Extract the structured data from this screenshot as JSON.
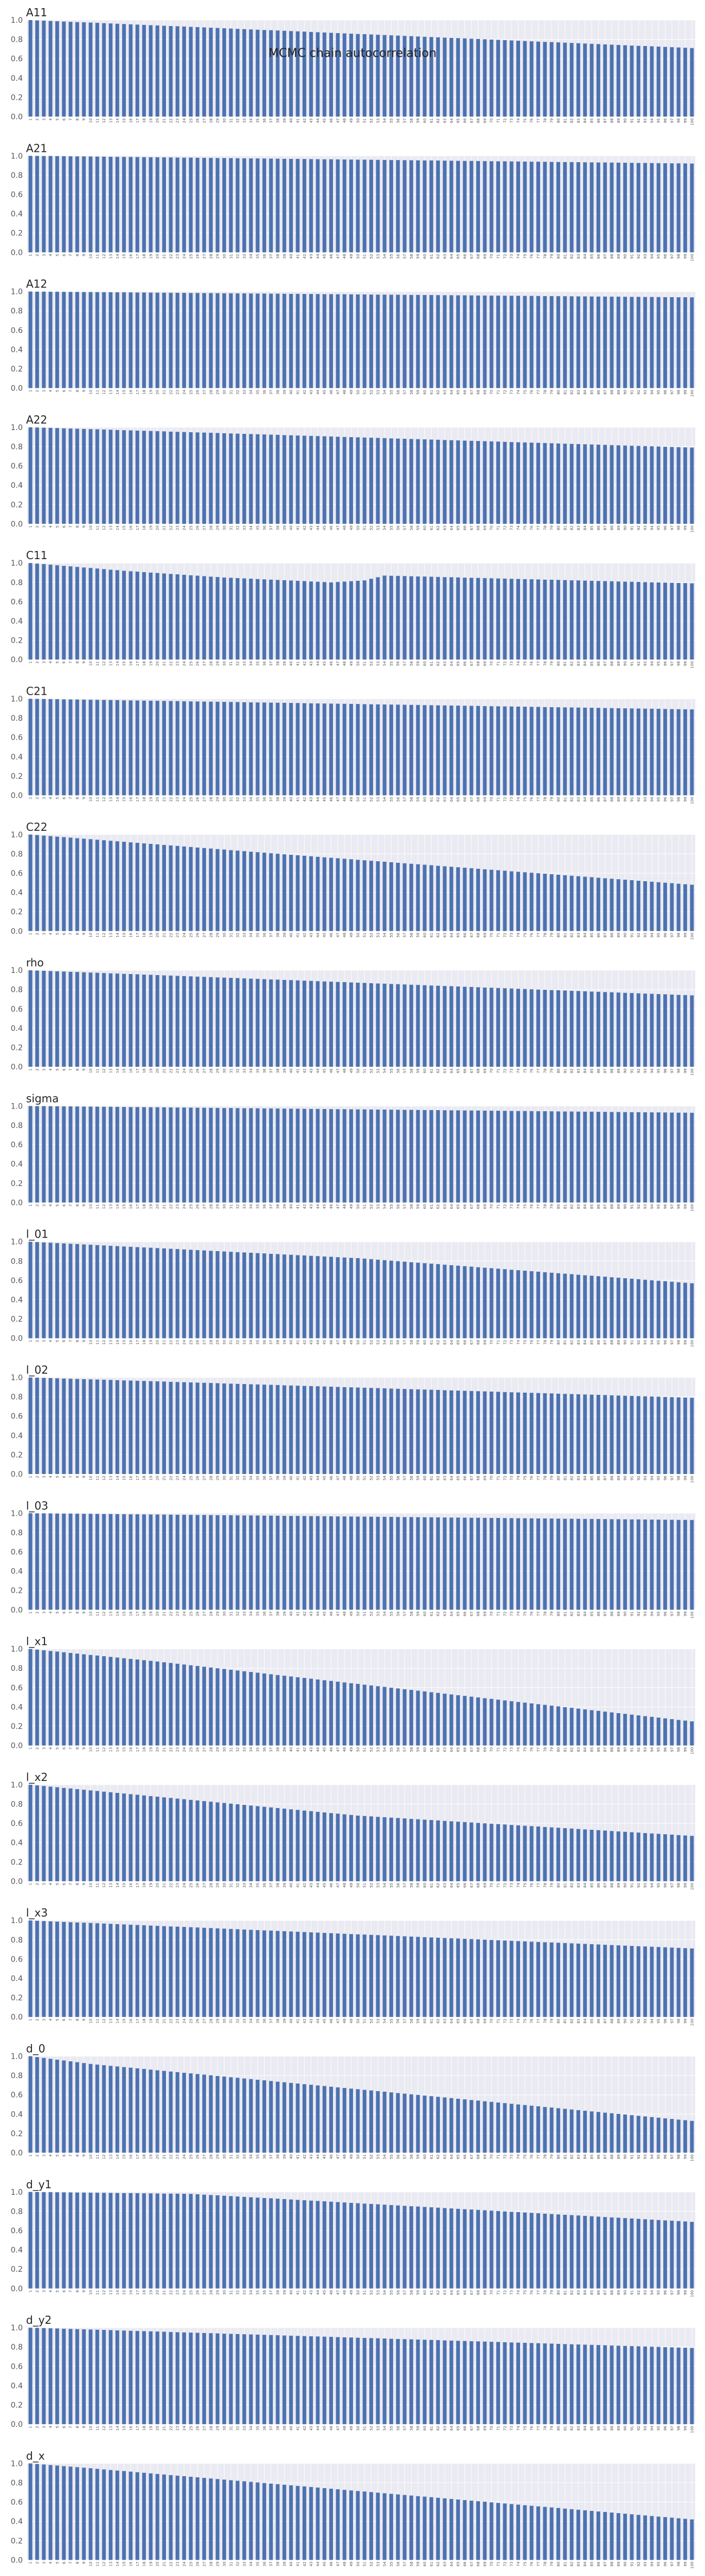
{
  "figure": {
    "suptitle": "MCMC chain autocorrelation",
    "colors": {
      "bar": "#4c72b0",
      "axes_bg": "#eaeaf2",
      "grid": "#ffffff",
      "text": "#262626"
    }
  },
  "chart_data": [
    {
      "type": "bar",
      "title": "A11",
      "x_range": [
        1,
        100
      ],
      "ylim": [
        0,
        1.0
      ],
      "yticks": [
        0.0,
        0.2,
        0.4,
        0.6,
        0.8,
        1.0
      ],
      "grid": true,
      "trend": {
        "kind": "linear",
        "at": [
          1,
          100
        ],
        "values": [
          1.0,
          0.71
        ]
      }
    },
    {
      "type": "bar",
      "title": "A21",
      "x_range": [
        1,
        100
      ],
      "ylim": [
        0,
        1.0
      ],
      "yticks": [
        0.0,
        0.2,
        0.4,
        0.6,
        0.8,
        1.0
      ],
      "grid": true,
      "trend": {
        "kind": "linear",
        "at": [
          1,
          100
        ],
        "values": [
          1.0,
          0.92
        ]
      }
    },
    {
      "type": "bar",
      "title": "A12",
      "x_range": [
        1,
        100
      ],
      "ylim": [
        0,
        1.0
      ],
      "yticks": [
        0.0,
        0.2,
        0.4,
        0.6,
        0.8,
        1.0
      ],
      "grid": true,
      "trend": {
        "kind": "linear",
        "at": [
          1,
          100
        ],
        "values": [
          1.0,
          0.94
        ]
      }
    },
    {
      "type": "bar",
      "title": "A22",
      "x_range": [
        1,
        100
      ],
      "ylim": [
        0,
        1.0
      ],
      "yticks": [
        0.0,
        0.2,
        0.4,
        0.6,
        0.8,
        1.0
      ],
      "grid": true,
      "trend": {
        "kind": "linear",
        "at": [
          1,
          100
        ],
        "values": [
          1.0,
          0.79
        ]
      }
    },
    {
      "type": "bar",
      "title": "C11",
      "x_range": [
        1,
        100
      ],
      "ylim": [
        0,
        1.0
      ],
      "yticks": [
        0.0,
        0.2,
        0.4,
        0.6,
        0.8,
        1.0
      ],
      "grid": true,
      "trend": {
        "kind": "piecewise",
        "at": [
          1,
          15,
          30,
          46,
          51,
          54,
          100
        ],
        "values": [
          1.0,
          0.92,
          0.85,
          0.8,
          0.82,
          0.87,
          0.79
        ]
      }
    },
    {
      "type": "bar",
      "title": "C21",
      "x_range": [
        1,
        100
      ],
      "ylim": [
        0,
        1.0
      ],
      "yticks": [
        0.0,
        0.2,
        0.4,
        0.6,
        0.8,
        1.0
      ],
      "grid": true,
      "trend": {
        "kind": "linear",
        "at": [
          1,
          100
        ],
        "values": [
          1.0,
          0.89
        ]
      }
    },
    {
      "type": "bar",
      "title": "C22",
      "x_range": [
        1,
        100
      ],
      "ylim": [
        0,
        1.0
      ],
      "yticks": [
        0.0,
        0.2,
        0.4,
        0.6,
        0.8,
        1.0
      ],
      "grid": true,
      "trend": {
        "kind": "piecewise",
        "at": [
          1,
          40,
          100
        ],
        "values": [
          1.0,
          0.79,
          0.48
        ]
      }
    },
    {
      "type": "bar",
      "title": "rho",
      "x_range": [
        1,
        100
      ],
      "ylim": [
        0,
        1.0
      ],
      "yticks": [
        0.0,
        0.2,
        0.4,
        0.6,
        0.8,
        1.0
      ],
      "grid": true,
      "trend": {
        "kind": "linear",
        "at": [
          1,
          100
        ],
        "values": [
          1.0,
          0.74
        ]
      }
    },
    {
      "type": "bar",
      "title": "sigma",
      "x_range": [
        1,
        100
      ],
      "ylim": [
        0,
        1.0
      ],
      "yticks": [
        0.0,
        0.2,
        0.4,
        0.6,
        0.8,
        1.0
      ],
      "grid": true,
      "trend": {
        "kind": "linear",
        "at": [
          1,
          100
        ],
        "values": [
          1.0,
          0.93
        ]
      }
    },
    {
      "type": "bar",
      "title": "l_01",
      "x_range": [
        1,
        100
      ],
      "ylim": [
        0,
        1.0
      ],
      "yticks": [
        0.0,
        0.2,
        0.4,
        0.6,
        0.8,
        1.0
      ],
      "grid": true,
      "trend": {
        "kind": "piecewise",
        "at": [
          1,
          50,
          100
        ],
        "values": [
          1.0,
          0.83,
          0.57
        ]
      }
    },
    {
      "type": "bar",
      "title": "l_02",
      "x_range": [
        1,
        100
      ],
      "ylim": [
        0,
        1.0
      ],
      "yticks": [
        0.0,
        0.2,
        0.4,
        0.6,
        0.8,
        1.0
      ],
      "grid": true,
      "trend": {
        "kind": "linear",
        "at": [
          1,
          100
        ],
        "values": [
          1.0,
          0.79
        ]
      }
    },
    {
      "type": "bar",
      "title": "l_03",
      "x_range": [
        1,
        100
      ],
      "ylim": [
        0,
        1.0
      ],
      "yticks": [
        0.0,
        0.2,
        0.4,
        0.6,
        0.8,
        1.0
      ],
      "grid": true,
      "trend": {
        "kind": "linear",
        "at": [
          1,
          100
        ],
        "values": [
          1.0,
          0.93
        ]
      }
    },
    {
      "type": "bar",
      "title": "l_x1",
      "x_range": [
        1,
        100
      ],
      "ylim": [
        0,
        1.0
      ],
      "yticks": [
        0.0,
        0.2,
        0.4,
        0.6,
        0.8,
        1.0
      ],
      "grid": true,
      "trend": {
        "kind": "piecewise",
        "at": [
          1,
          20,
          100
        ],
        "values": [
          1.0,
          0.87,
          0.25
        ]
      }
    },
    {
      "type": "bar",
      "title": "l_x2",
      "x_range": [
        1,
        100
      ],
      "ylim": [
        0,
        1.0
      ],
      "yticks": [
        0.0,
        0.2,
        0.4,
        0.6,
        0.8,
        1.0
      ],
      "grid": true,
      "trend": {
        "kind": "piecewise",
        "at": [
          1,
          50,
          100
        ],
        "values": [
          1.0,
          0.68,
          0.47
        ]
      }
    },
    {
      "type": "bar",
      "title": "l_x3",
      "x_range": [
        1,
        100
      ],
      "ylim": [
        0,
        1.0
      ],
      "yticks": [
        0.0,
        0.2,
        0.4,
        0.6,
        0.8,
        1.0
      ],
      "grid": true,
      "trend": {
        "kind": "linear",
        "at": [
          1,
          100
        ],
        "values": [
          1.0,
          0.71
        ]
      }
    },
    {
      "type": "bar",
      "title": "d_0",
      "x_range": [
        1,
        100
      ],
      "ylim": [
        0,
        1.0
      ],
      "yticks": [
        0.0,
        0.2,
        0.4,
        0.6,
        0.8,
        1.0
      ],
      "grid": true,
      "trend": {
        "kind": "piecewise",
        "at": [
          1,
          10,
          100
        ],
        "values": [
          1.0,
          0.92,
          0.33
        ]
      }
    },
    {
      "type": "bar",
      "title": "d_y1",
      "x_range": [
        1,
        100
      ],
      "ylim": [
        0,
        1.0
      ],
      "yticks": [
        0.0,
        0.2,
        0.4,
        0.6,
        0.8,
        1.0
      ],
      "grid": true,
      "trend": {
        "kind": "piecewise",
        "at": [
          1,
          25,
          100
        ],
        "values": [
          1.0,
          0.98,
          0.69
        ]
      }
    },
    {
      "type": "bar",
      "title": "d_y2",
      "x_range": [
        1,
        100
      ],
      "ylim": [
        0,
        1.0
      ],
      "yticks": [
        0.0,
        0.2,
        0.4,
        0.6,
        0.8,
        1.0
      ],
      "grid": true,
      "trend": {
        "kind": "linear",
        "at": [
          1,
          100
        ],
        "values": [
          1.0,
          0.79
        ]
      }
    },
    {
      "type": "bar",
      "title": "d_x",
      "x_range": [
        1,
        100
      ],
      "ylim": [
        0,
        1.0
      ],
      "yticks": [
        0.0,
        0.2,
        0.4,
        0.6,
        0.8,
        1.0
      ],
      "grid": true,
      "trend": {
        "kind": "piecewise",
        "at": [
          1,
          10,
          100
        ],
        "values": [
          1.0,
          0.95,
          0.42
        ]
      }
    }
  ]
}
